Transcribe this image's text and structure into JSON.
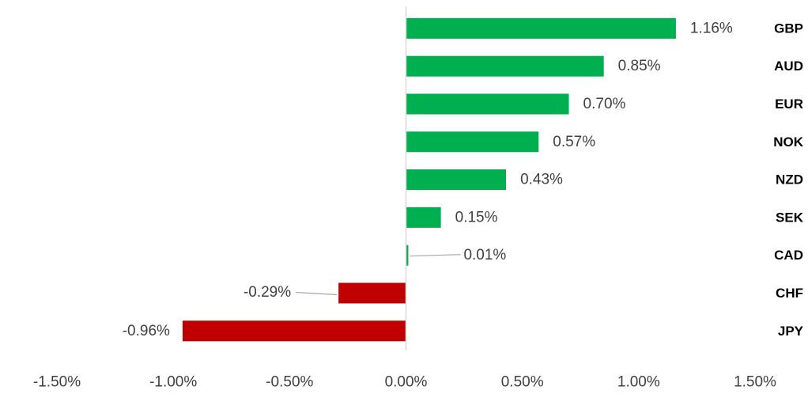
{
  "chart_data": {
    "type": "bar",
    "orientation": "horizontal",
    "title": "",
    "xlabel": "",
    "ylabel": "",
    "categories": [
      "GBP",
      "AUD",
      "EUR",
      "NOK",
      "NZD",
      "SEK",
      "CAD",
      "CHF",
      "JPY"
    ],
    "values": [
      1.16,
      0.85,
      0.7,
      0.57,
      0.43,
      0.15,
      0.01,
      -0.29,
      -0.96
    ],
    "value_labels": [
      "1.16%",
      "0.85%",
      "0.70%",
      "0.57%",
      "0.43%",
      "0.15%",
      "0.01%",
      "-0.29%",
      "-0.96%"
    ],
    "xlim": [
      -1.5,
      1.5
    ],
    "x_ticks": [
      -1.5,
      -1.0,
      -0.5,
      0.0,
      0.5,
      1.0,
      1.5
    ],
    "x_tick_labels": [
      "-1.50%",
      "-1.00%",
      "-0.50%",
      "0.00%",
      "0.50%",
      "1.00%",
      "1.50%"
    ],
    "grid": false,
    "legend": "none",
    "colors": {
      "positive": "#00b050",
      "negative": "#c00000"
    }
  }
}
